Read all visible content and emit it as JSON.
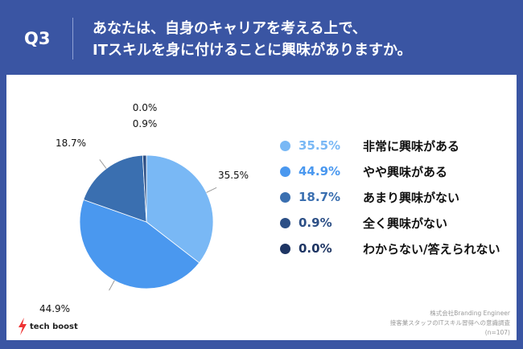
{
  "header": {
    "q": "Q3",
    "title_line1": "あなたは、自身のキャリアを考える上で、",
    "title_line2": "ITスキルを身に付けることに興味がありますか。"
  },
  "chart_data": {
    "type": "pie",
    "categories": [
      "非常に興味がある",
      "やや興味がある",
      "あまり興味がない",
      "全く興味がない",
      "わからない/答えられない"
    ],
    "values": [
      35.5,
      44.9,
      18.7,
      0.9,
      0.0
    ],
    "labels": [
      "35.5%",
      "44.9%",
      "18.7%",
      "0.9%",
      "0.0%"
    ],
    "colors": [
      "#79b8f5",
      "#4a98ef",
      "#3a6fb0",
      "#2c4f86",
      "#1e3563"
    ],
    "start": "top",
    "direction": "clockwise",
    "legend": "right"
  },
  "footer": {
    "line1": "株式会社Branding Engineer",
    "line2": "接客業スタッフのITスキル習得への意識調査",
    "line3": "(n=107)"
  },
  "logo": {
    "text": "tech boost"
  }
}
